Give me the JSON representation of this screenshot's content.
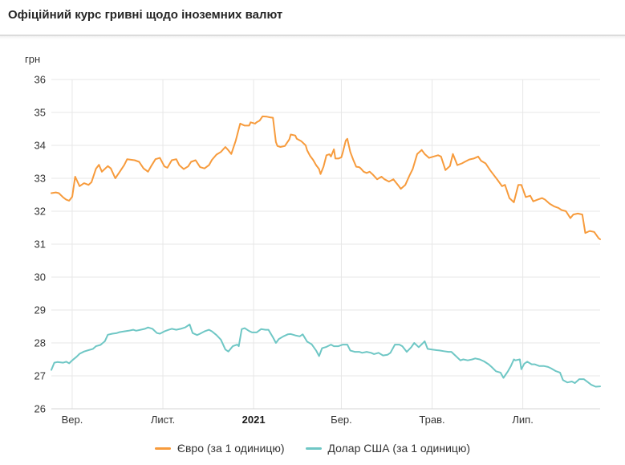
{
  "header": {
    "title": "Офіційний курс гривні щодо іноземних валют"
  },
  "colors": {
    "euro_line": "#F79B3C",
    "usd_line": "#6FC7C5",
    "grid": "#e7e7e7",
    "axis_line": "#d4d4d4",
    "text": "#333333"
  },
  "chart_data": {
    "type": "line",
    "title": "Офіційний курс гривні щодо іноземних валют",
    "y_unit_label": "грн",
    "ylabel": "грн",
    "xlabel": "",
    "grid": true,
    "legend_position": "bottom",
    "ylim": [
      26,
      36
    ],
    "y_ticks": [
      26,
      27,
      28,
      29,
      30,
      31,
      32,
      33,
      34,
      35,
      36
    ],
    "x_unit": "days since 2020-08-18",
    "xlim": [
      0,
      369
    ],
    "x_ticks": [
      {
        "day": 14,
        "label": "Вер.",
        "bold": false
      },
      {
        "day": 75,
        "label": "Лист.",
        "bold": false
      },
      {
        "day": 136,
        "label": "2021",
        "bold": true
      },
      {
        "day": 195,
        "label": "Бер.",
        "bold": false
      },
      {
        "day": 256,
        "label": "Трав.",
        "bold": false
      },
      {
        "day": 317,
        "label": "Лип.",
        "bold": false
      }
    ],
    "series": [
      {
        "id": "euro",
        "name": "Євро (за 1 одиницю)",
        "color": "#F79B3C",
        "points": [
          [
            0,
            32.55
          ],
          [
            3,
            32.57
          ],
          [
            5,
            32.55
          ],
          [
            8,
            32.42
          ],
          [
            10,
            32.35
          ],
          [
            12,
            32.32
          ],
          [
            14,
            32.44
          ],
          [
            16,
            33.05
          ],
          [
            19,
            32.76
          ],
          [
            22,
            32.85
          ],
          [
            25,
            32.8
          ],
          [
            27,
            32.88
          ],
          [
            30,
            33.29
          ],
          [
            32,
            33.41
          ],
          [
            34,
            33.2
          ],
          [
            38,
            33.37
          ],
          [
            40,
            33.3
          ],
          [
            43,
            33.0
          ],
          [
            46,
            33.2
          ],
          [
            49,
            33.4
          ],
          [
            51,
            33.58
          ],
          [
            56,
            33.55
          ],
          [
            59,
            33.5
          ],
          [
            62,
            33.3
          ],
          [
            65,
            33.2
          ],
          [
            67,
            33.36
          ],
          [
            70,
            33.58
          ],
          [
            73,
            33.62
          ],
          [
            76,
            33.36
          ],
          [
            78,
            33.32
          ],
          [
            81,
            33.55
          ],
          [
            84,
            33.58
          ],
          [
            86,
            33.4
          ],
          [
            89,
            33.28
          ],
          [
            92,
            33.36
          ],
          [
            94,
            33.5
          ],
          [
            97,
            33.55
          ],
          [
            100,
            33.34
          ],
          [
            103,
            33.3
          ],
          [
            106,
            33.4
          ],
          [
            108,
            33.56
          ],
          [
            111,
            33.72
          ],
          [
            114,
            33.8
          ],
          [
            117,
            33.95
          ],
          [
            119,
            33.85
          ],
          [
            121,
            33.74
          ],
          [
            124,
            34.15
          ],
          [
            126,
            34.5
          ],
          [
            127,
            34.66
          ],
          [
            130,
            34.6
          ],
          [
            133,
            34.6
          ],
          [
            134,
            34.7
          ],
          [
            137,
            34.66
          ],
          [
            138,
            34.7
          ],
          [
            140,
            34.75
          ],
          [
            142,
            34.88
          ],
          [
            145,
            34.87
          ],
          [
            147,
            34.85
          ],
          [
            149,
            34.84
          ],
          [
            151,
            34.1
          ],
          [
            152,
            33.98
          ],
          [
            154,
            33.95
          ],
          [
            157,
            33.98
          ],
          [
            160,
            34.18
          ],
          [
            161,
            34.33
          ],
          [
            164,
            34.3
          ],
          [
            165,
            34.2
          ],
          [
            168,
            34.13
          ],
          [
            171,
            34.0
          ],
          [
            172,
            33.85
          ],
          [
            174,
            33.68
          ],
          [
            176,
            33.56
          ],
          [
            178,
            33.4
          ],
          [
            180,
            33.28
          ],
          [
            181,
            33.13
          ],
          [
            183,
            33.35
          ],
          [
            185,
            33.7
          ],
          [
            187,
            33.73
          ],
          [
            188,
            33.66
          ],
          [
            190,
            33.88
          ],
          [
            191,
            33.6
          ],
          [
            193,
            33.6
          ],
          [
            195,
            33.64
          ],
          [
            196,
            33.79
          ],
          [
            198,
            34.15
          ],
          [
            199,
            34.2
          ],
          [
            201,
            33.8
          ],
          [
            203,
            33.56
          ],
          [
            205,
            33.35
          ],
          [
            207,
            33.34
          ],
          [
            208,
            33.3
          ],
          [
            210,
            33.2
          ],
          [
            212,
            33.16
          ],
          [
            214,
            33.2
          ],
          [
            216,
            33.12
          ],
          [
            219,
            32.97
          ],
          [
            222,
            33.05
          ],
          [
            224,
            32.97
          ],
          [
            227,
            32.9
          ],
          [
            230,
            32.97
          ],
          [
            233,
            32.8
          ],
          [
            235,
            32.68
          ],
          [
            238,
            32.8
          ],
          [
            241,
            33.1
          ],
          [
            243,
            33.28
          ],
          [
            246,
            33.74
          ],
          [
            249,
            33.86
          ],
          [
            251,
            33.74
          ],
          [
            254,
            33.62
          ],
          [
            257,
            33.66
          ],
          [
            260,
            33.7
          ],
          [
            262,
            33.66
          ],
          [
            265,
            33.25
          ],
          [
            268,
            33.37
          ],
          [
            270,
            33.74
          ],
          [
            273,
            33.4
          ],
          [
            276,
            33.45
          ],
          [
            278,
            33.5
          ],
          [
            281,
            33.57
          ],
          [
            284,
            33.6
          ],
          [
            287,
            33.66
          ],
          [
            289,
            33.53
          ],
          [
            292,
            33.45
          ],
          [
            295,
            33.25
          ],
          [
            297,
            33.13
          ],
          [
            300,
            32.95
          ],
          [
            303,
            32.76
          ],
          [
            305,
            32.8
          ],
          [
            308,
            32.4
          ],
          [
            311,
            32.27
          ],
          [
            314,
            32.8
          ],
          [
            316,
            32.8
          ],
          [
            319,
            32.43
          ],
          [
            322,
            32.47
          ],
          [
            324,
            32.3
          ],
          [
            327,
            32.35
          ],
          [
            330,
            32.4
          ],
          [
            332,
            32.35
          ],
          [
            335,
            32.23
          ],
          [
            338,
            32.15
          ],
          [
            341,
            32.1
          ],
          [
            343,
            32.04
          ],
          [
            346,
            32.0
          ],
          [
            349,
            31.79
          ],
          [
            351,
            31.9
          ],
          [
            354,
            31.93
          ],
          [
            357,
            31.9
          ],
          [
            359,
            31.34
          ],
          [
            362,
            31.4
          ],
          [
            365,
            31.37
          ],
          [
            368,
            31.18
          ],
          [
            369,
            31.15
          ]
        ]
      },
      {
        "id": "usd",
        "name": "Долар США (за 1 одиницю)",
        "color": "#6FC7C5",
        "points": [
          [
            0,
            27.18
          ],
          [
            2,
            27.4
          ],
          [
            4,
            27.42
          ],
          [
            8,
            27.4
          ],
          [
            10,
            27.43
          ],
          [
            12,
            27.38
          ],
          [
            14,
            27.47
          ],
          [
            17,
            27.58
          ],
          [
            19,
            27.67
          ],
          [
            22,
            27.74
          ],
          [
            25,
            27.78
          ],
          [
            28,
            27.82
          ],
          [
            30,
            27.9
          ],
          [
            33,
            27.94
          ],
          [
            36,
            28.05
          ],
          [
            38,
            28.25
          ],
          [
            41,
            28.28
          ],
          [
            44,
            28.3
          ],
          [
            46,
            28.33
          ],
          [
            49,
            28.35
          ],
          [
            52,
            28.37
          ],
          [
            55,
            28.4
          ],
          [
            57,
            28.37
          ],
          [
            60,
            28.4
          ],
          [
            63,
            28.43
          ],
          [
            65,
            28.47
          ],
          [
            68,
            28.43
          ],
          [
            71,
            28.3
          ],
          [
            73,
            28.28
          ],
          [
            76,
            28.35
          ],
          [
            79,
            28.4
          ],
          [
            81,
            28.43
          ],
          [
            84,
            28.4
          ],
          [
            87,
            28.43
          ],
          [
            90,
            28.47
          ],
          [
            93,
            28.56
          ],
          [
            95,
            28.3
          ],
          [
            98,
            28.24
          ],
          [
            100,
            28.28
          ],
          [
            103,
            28.35
          ],
          [
            106,
            28.4
          ],
          [
            108,
            28.35
          ],
          [
            111,
            28.24
          ],
          [
            114,
            28.1
          ],
          [
            117,
            27.8
          ],
          [
            119,
            27.74
          ],
          [
            122,
            27.9
          ],
          [
            125,
            27.95
          ],
          [
            126,
            27.9
          ],
          [
            128,
            28.42
          ],
          [
            130,
            28.45
          ],
          [
            133,
            28.36
          ],
          [
            135,
            28.32
          ],
          [
            138,
            28.32
          ],
          [
            141,
            28.42
          ],
          [
            144,
            28.4
          ],
          [
            146,
            28.4
          ],
          [
            149,
            28.17
          ],
          [
            151,
            28.0
          ],
          [
            153,
            28.12
          ],
          [
            156,
            28.2
          ],
          [
            159,
            28.26
          ],
          [
            161,
            28.27
          ],
          [
            164,
            28.23
          ],
          [
            167,
            28.2
          ],
          [
            169,
            28.26
          ],
          [
            172,
            28.04
          ],
          [
            175,
            27.96
          ],
          [
            178,
            27.77
          ],
          [
            180,
            27.6
          ],
          [
            182,
            27.84
          ],
          [
            185,
            27.88
          ],
          [
            188,
            27.95
          ],
          [
            190,
            27.9
          ],
          [
            193,
            27.9
          ],
          [
            196,
            27.95
          ],
          [
            199,
            27.95
          ],
          [
            201,
            27.77
          ],
          [
            204,
            27.73
          ],
          [
            207,
            27.73
          ],
          [
            209,
            27.7
          ],
          [
            212,
            27.73
          ],
          [
            215,
            27.7
          ],
          [
            217,
            27.66
          ],
          [
            220,
            27.7
          ],
          [
            223,
            27.62
          ],
          [
            226,
            27.64
          ],
          [
            228,
            27.7
          ],
          [
            231,
            27.95
          ],
          [
            234,
            27.95
          ],
          [
            236,
            27.9
          ],
          [
            239,
            27.73
          ],
          [
            242,
            27.87
          ],
          [
            244,
            28.0
          ],
          [
            247,
            27.87
          ],
          [
            250,
            28.0
          ],
          [
            251,
            28.05
          ],
          [
            253,
            27.82
          ],
          [
            256,
            27.8
          ],
          [
            259,
            27.78
          ],
          [
            261,
            27.77
          ],
          [
            264,
            27.75
          ],
          [
            267,
            27.73
          ],
          [
            269,
            27.73
          ],
          [
            272,
            27.6
          ],
          [
            275,
            27.47
          ],
          [
            277,
            27.5
          ],
          [
            280,
            27.47
          ],
          [
            283,
            27.5
          ],
          [
            285,
            27.53
          ],
          [
            288,
            27.5
          ],
          [
            291,
            27.44
          ],
          [
            294,
            27.35
          ],
          [
            296,
            27.27
          ],
          [
            299,
            27.14
          ],
          [
            302,
            27.1
          ],
          [
            304,
            26.94
          ],
          [
            307,
            27.14
          ],
          [
            309,
            27.3
          ],
          [
            311,
            27.5
          ],
          [
            312,
            27.47
          ],
          [
            315,
            27.5
          ],
          [
            316,
            27.2
          ],
          [
            318,
            27.37
          ],
          [
            320,
            27.43
          ],
          [
            323,
            27.35
          ],
          [
            325,
            27.35
          ],
          [
            328,
            27.3
          ],
          [
            331,
            27.3
          ],
          [
            334,
            27.27
          ],
          [
            336,
            27.23
          ],
          [
            339,
            27.15
          ],
          [
            342,
            27.1
          ],
          [
            344,
            26.87
          ],
          [
            347,
            26.8
          ],
          [
            350,
            26.83
          ],
          [
            352,
            26.78
          ],
          [
            355,
            26.9
          ],
          [
            358,
            26.9
          ],
          [
            361,
            26.8
          ],
          [
            363,
            26.73
          ],
          [
            366,
            26.67
          ],
          [
            369,
            26.68
          ]
        ]
      }
    ]
  }
}
